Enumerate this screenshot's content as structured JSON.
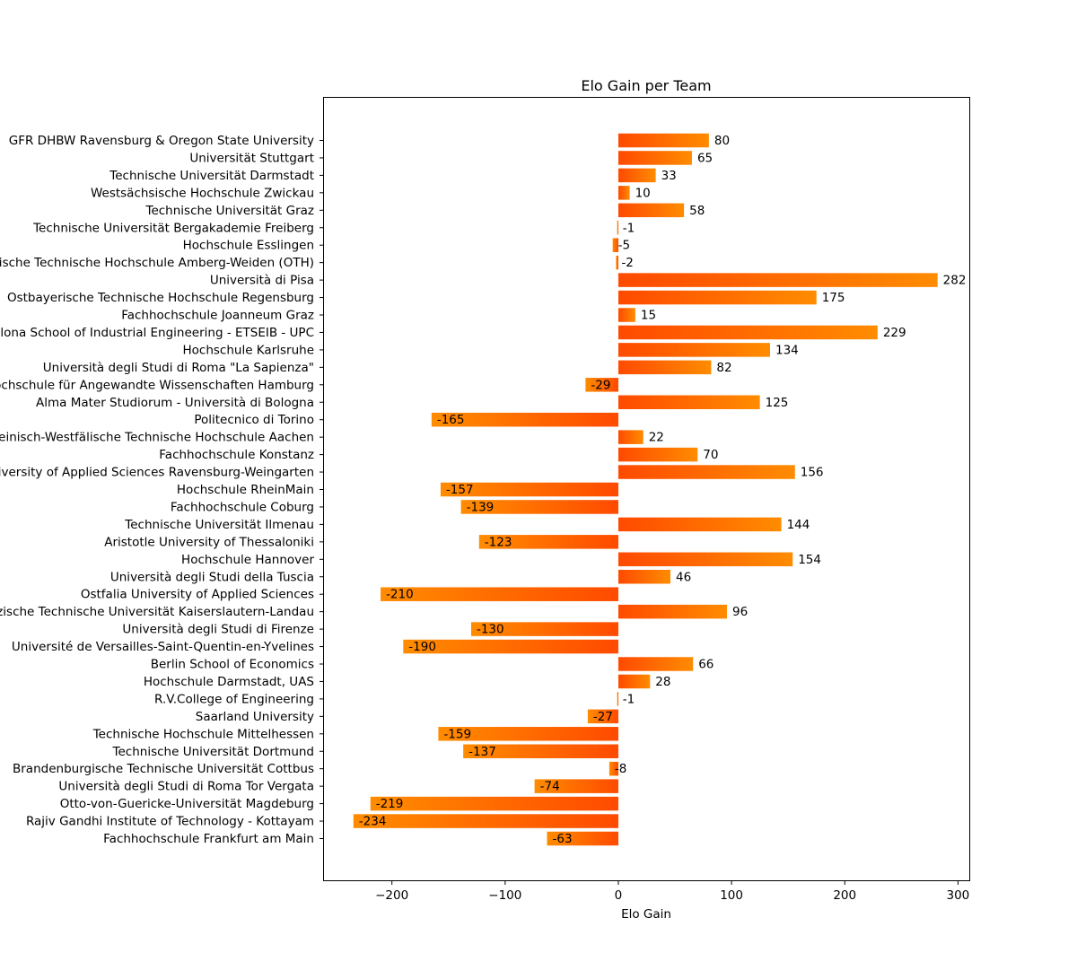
{
  "chart_data": {
    "type": "bar",
    "orientation": "horizontal",
    "title": "Elo Gain per Team",
    "xlabel": "Elo Gain",
    "ylabel": "",
    "xlim": [
      -260,
      310
    ],
    "xticks": [
      -200,
      -100,
      0,
      100,
      200,
      300
    ],
    "xtick_labels": [
      "−200",
      "−100",
      "0",
      "100",
      "200",
      "300"
    ],
    "grid": false,
    "categories": [
      "GFR DHBW Ravensburg & Oregon State University",
      "Universität Stuttgart",
      "Technische Universität Darmstadt",
      "Westsächsische Hochschule Zwickau",
      "Technische Universität Graz",
      "Technische Universität Bergakademie Freiberg",
      "Hochschule Esslingen",
      "Ostbayerische Technische Hochschule Amberg-Weiden (OTH)",
      "Università di Pisa",
      "Ostbayerische Technische Hochschule Regensburg",
      "Fachhochschule Joanneum Graz",
      "Barcelona School of Industrial Engineering - ETSEIB - UPC",
      "Hochschule Karlsruhe",
      "Università degli Studi di Roma \"La Sapienza\"",
      "Hochschule für Angewandte Wissenschaften Hamburg",
      "Alma Mater Studiorum - Università di Bologna",
      "Politecnico di Torino",
      "Rheinisch-Westfälische Technische Hochschule Aachen",
      "Fachhochschule Konstanz",
      "University of Applied Sciences Ravensburg-Weingarten",
      "Hochschule RheinMain",
      "Fachhochschule Coburg",
      "Technische Universität Ilmenau",
      "Aristotle University of Thessaloniki",
      "Hochschule Hannover",
      "Università degli Studi della Tuscia",
      "Ostfalia University of Applied Sciences",
      "Rheinland-Pfälzische Technische Universität Kaiserslautern-Landau",
      "Università degli Studi di Firenze",
      "Université de Versailles-Saint-Quentin-en-Yvelines",
      "Berlin School of Economics",
      "Hochschule Darmstadt, UAS",
      "R.V.College of Engineering",
      "Saarland University",
      "Technische Hochschule Mittelhessen",
      "Technische Universität Dortmund",
      "Brandenburgische Technische Universität Cottbus",
      "Università degli Studi di Roma Tor Vergata",
      "Otto-von-Guericke-Universität Magdeburg",
      "Rajiv Gandhi Institute of Technology - Kottayam",
      "Fachhochschule Frankfurt am Main"
    ],
    "values": [
      80,
      65,
      33,
      10,
      58,
      -1,
      -5,
      -2,
      282,
      175,
      15,
      229,
      134,
      82,
      -29,
      125,
      -165,
      22,
      70,
      156,
      -157,
      -139,
      144,
      -123,
      154,
      46,
      -210,
      96,
      -130,
      -190,
      66,
      28,
      -1,
      -27,
      -159,
      -137,
      -8,
      -74,
      -219,
      -234,
      -63
    ],
    "data_labels": [
      "80",
      "65",
      "33",
      "10",
      "58",
      "-1",
      "-5",
      "-2",
      "282",
      "175",
      "15",
      "229",
      "134",
      "82",
      "-29",
      "125",
      "-165",
      "22",
      "70",
      "156",
      "-157",
      "-139",
      "144",
      "-123",
      "154",
      "46",
      "-210",
      "96",
      "-130",
      "-190",
      "66",
      "28",
      "-1",
      "-27",
      "-159",
      "-137",
      "-8",
      "-74",
      "-219",
      "-234",
      "-63"
    ],
    "colors": {
      "bar_dark": "#ff4a00",
      "bar_light": "#ff8c00",
      "axes": "#000000",
      "text": "#000000"
    }
  }
}
